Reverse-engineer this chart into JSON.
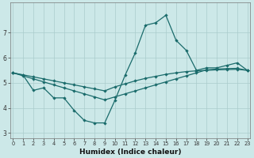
{
  "xlabel": "Humidex (Indice chaleur)",
  "background_color": "#cce8e8",
  "line_color": "#1a6b6b",
  "grid_color": "#aacccc",
  "x_all": [
    0,
    1,
    2,
    3,
    4,
    5,
    6,
    7,
    8,
    9,
    10,
    11,
    12,
    13,
    14,
    15,
    16,
    17,
    18,
    19,
    20,
    21,
    22,
    23
  ],
  "y_line1": [
    5.4,
    5.3,
    4.7,
    4.8,
    4.4,
    4.4,
    3.9,
    3.5,
    3.4,
    3.4,
    4.3,
    5.3,
    6.2,
    7.3,
    7.4,
    7.7,
    6.7,
    6.3,
    5.5,
    5.6,
    5.6,
    5.7,
    5.8,
    5.5
  ],
  "y_line2": [
    5.4,
    5.32,
    5.24,
    5.16,
    5.08,
    5.0,
    4.92,
    4.84,
    4.76,
    4.68,
    4.84,
    4.96,
    5.08,
    5.18,
    5.26,
    5.34,
    5.4,
    5.45,
    5.48,
    5.5,
    5.52,
    5.53,
    5.54,
    5.5
  ],
  "y_line3": [
    5.4,
    5.28,
    5.16,
    5.04,
    4.92,
    4.8,
    4.68,
    4.56,
    4.44,
    4.32,
    4.44,
    4.56,
    4.68,
    4.8,
    4.92,
    5.04,
    5.16,
    5.28,
    5.4,
    5.52,
    5.55,
    5.57,
    5.58,
    5.5
  ],
  "ylim": [
    2.8,
    8.2
  ],
  "xlim_min": -0.3,
  "xlim_max": 23.3,
  "yticks": [
    3,
    4,
    5,
    6,
    7
  ],
  "xticks": [
    0,
    1,
    2,
    3,
    4,
    5,
    6,
    7,
    8,
    9,
    10,
    11,
    12,
    13,
    14,
    15,
    16,
    17,
    18,
    19,
    20,
    21,
    22,
    23
  ]
}
